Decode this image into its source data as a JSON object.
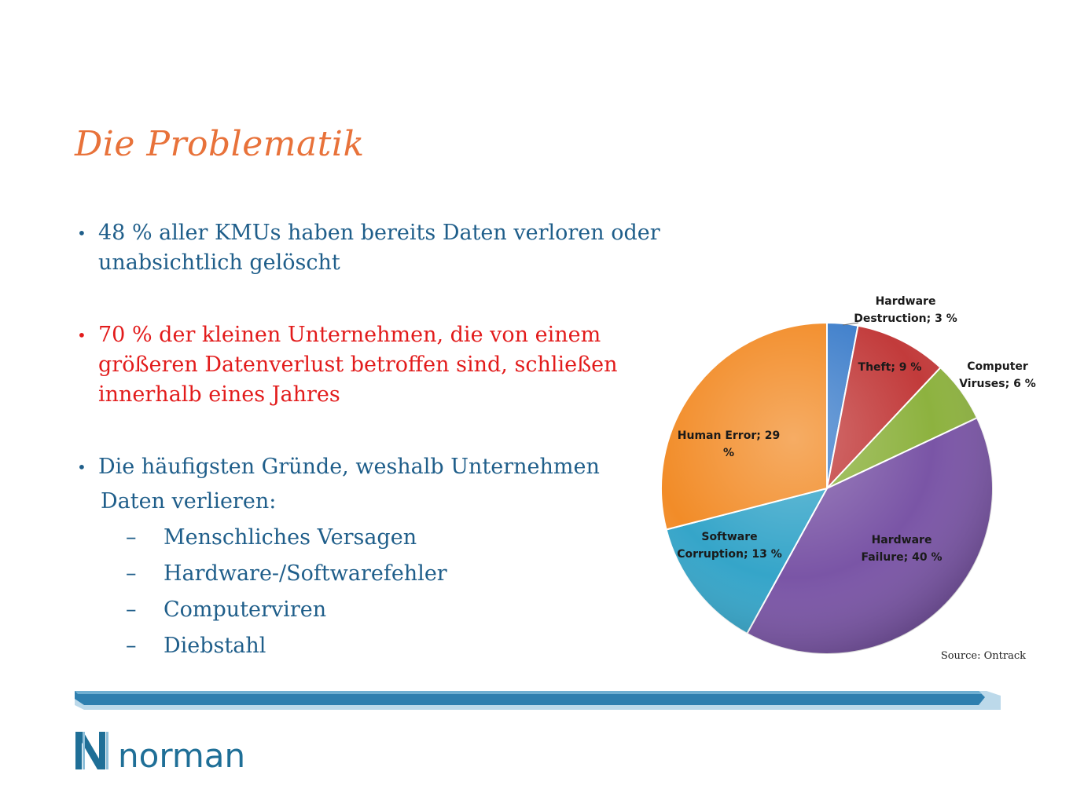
{
  "title": "Die Problematik",
  "bullets": {
    "b1_line1": "48 % aller KMUs haben bereits Daten verloren oder",
    "b1_line2": "unabsichtlich gelöscht",
    "b2_line1": "70 % der kleinen Unternehmen, die von einem",
    "b2_line2": "größeren Datenverlust betroffen sind, schließen",
    "b2_line3": "innerhalb eines Jahres",
    "b3_line1": "Die häufigsten Gründe, weshalb Unternehmen",
    "b3_line2": "Daten verlieren:",
    "bullet_char": "•",
    "dash_char": "–",
    "reasons": [
      "Menschliches Versagen",
      "Hardware-/Softwarefehler",
      "Computerviren",
      "Diebstahl"
    ]
  },
  "chart_data": {
    "type": "pie",
    "source": "Source: Ontrack",
    "slices": [
      {
        "label": "Hardware Destruction; 3 %",
        "lines": [
          "Hardware",
          "Destruction; 3 %"
        ],
        "value": 3,
        "color": "#3F7FCB"
      },
      {
        "label": "Theft; 9 %",
        "lines": [
          "Theft; 9 %"
        ],
        "value": 9,
        "color": "#C23B3B"
      },
      {
        "label": "Computer Viruses; 6 %",
        "lines": [
          "Computer",
          "Viruses; 6 %"
        ],
        "value": 6,
        "color": "#8DB23F"
      },
      {
        "label": "Hardware Failure; 40 %",
        "lines": [
          "Hardware",
          "Failure; 40 %"
        ],
        "value": 40,
        "color": "#7A55A6"
      },
      {
        "label": "Software Corruption; 13 %",
        "lines": [
          "Software",
          "Corruption; 13 %"
        ],
        "value": 13,
        "color": "#35A5C9"
      },
      {
        "label": "Human Error; 29 %",
        "lines": [
          "Human Error; 29",
          "%"
        ],
        "value": 29,
        "color": "#F28C28"
      }
    ]
  },
  "logo": {
    "letter": "N",
    "text": "norman"
  },
  "colors": {
    "title": "#E8723A",
    "text_blue": "#1F5E8A",
    "text_red": "#E21B1B",
    "bar": "#2F7FAF"
  }
}
